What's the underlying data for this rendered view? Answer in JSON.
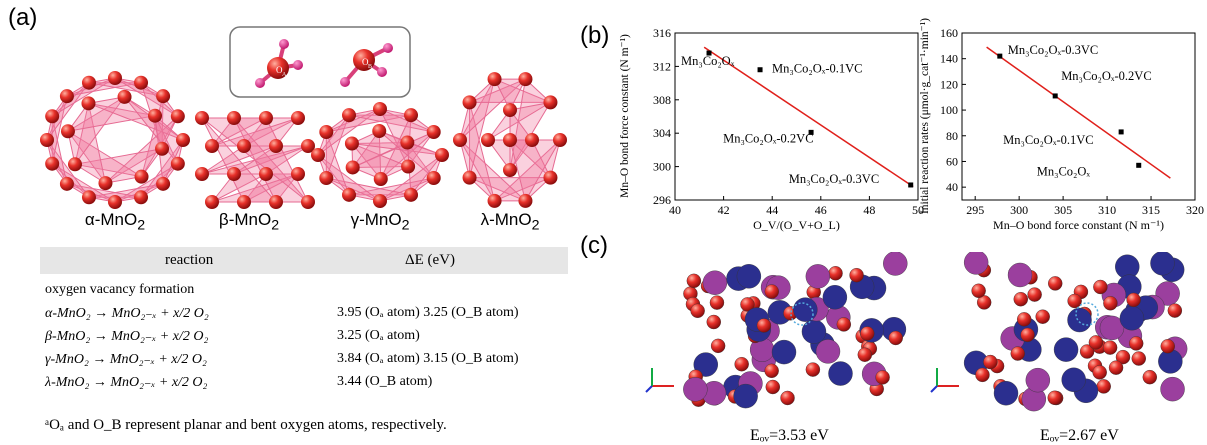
{
  "panel_a": {
    "label": "(a)",
    "structures": [
      {
        "name": "α-MnO",
        "sub": "2"
      },
      {
        "name": "β-MnO",
        "sub": "2"
      },
      {
        "name": "γ-MnO",
        "sub": "2"
      },
      {
        "name": "λ-MnO",
        "sub": "2"
      }
    ],
    "inset": {
      "atom_a": "A",
      "atom_b": "B"
    },
    "table": {
      "col_reaction": "reaction",
      "col_energy": "ΔE (eV)",
      "section": "oxygen vacancy formation",
      "rows": [
        {
          "reaction": "α-MnO₂ → MnO₂₋ₓ + x/2 O₂",
          "energy": "3.95 (Oₐ atom) 3.25 (O_B atom)"
        },
        {
          "reaction": "β-MnO₂ → MnO₂₋ₓ + x/2 O₂",
          "energy": "3.25 (Oₐ atom)"
        },
        {
          "reaction": "γ-MnO₂ → MnO₂₋ₓ + x/2 O₂",
          "energy": "3.84 (Oₐ atom) 3.15 (O_B atom)"
        },
        {
          "reaction": "λ-MnO₂ → MnO₂₋ₓ + x/2 O₂",
          "energy": "3.44 (O_B atom)"
        }
      ],
      "footnote": "ᵃOₐ and O_B represent planar and bent oxygen atoms, respectively."
    }
  },
  "panel_b": {
    "label": "(b)"
  },
  "panel_c": {
    "label": "(c)",
    "energies": [
      "Eₒᵥ=3.53 eV",
      "Eₒᵥ=2.67 eV"
    ]
  },
  "colors": {
    "fit_line": "#e0201b",
    "oxygen": "#e8312a",
    "oxygen_dark": "#9c0f0f",
    "mn_purple": "#9b3f9e",
    "co_blue": "#2b2f8f",
    "polyhedron": "#f27aa0"
  },
  "chart_data": [
    {
      "type": "scatter",
      "xlabel": "O_V/(O_V+O_L)",
      "ylabel": "Mn–O bond force constant (N m⁻¹)",
      "xlim": [
        40,
        50
      ],
      "ylim": [
        296,
        316
      ],
      "xticks": [
        "40",
        "42",
        "44",
        "46",
        "48",
        "50"
      ],
      "yticks": [
        "296",
        "300",
        "304",
        "308",
        "312",
        "316"
      ],
      "points": [
        {
          "label": "Mn₃Co₂Oₓ",
          "x": 41.4,
          "y": 313.6
        },
        {
          "label": "Mn₃Co₂Oₓ-0.1VC",
          "x": 43.5,
          "y": 311.6
        },
        {
          "label": "Mn₃Co₂Oₓ-0.2VC",
          "x": 45.6,
          "y": 304.1
        },
        {
          "label": "Mn₃Co₂Oₓ-0.3VC",
          "x": 49.7,
          "y": 297.8
        }
      ],
      "fit": {
        "x": [
          41.2,
          49.8
        ],
        "y": [
          314.3,
          297.6
        ]
      },
      "grid": false
    },
    {
      "type": "scatter",
      "xlabel": "Mn–O bond force constant (N m⁻¹)",
      "ylabel": "Initial reaction rates (μmol·g_cat⁻¹·min⁻¹)",
      "xlim": [
        293.5,
        320
      ],
      "ylim": [
        30,
        160
      ],
      "xticks": [
        "295",
        "300",
        "305",
        "310",
        "315",
        "320"
      ],
      "yticks": [
        "40",
        "60",
        "80",
        "100",
        "120",
        "140",
        "160"
      ],
      "points": [
        {
          "label": "Mn₃Co₂Oₓ-0.3VC",
          "x": 297.8,
          "y": 142
        },
        {
          "label": "Mn₃Co₂Oₓ-0.2VC",
          "x": 304.1,
          "y": 111
        },
        {
          "label": "Mn₃Co₂Oₓ-0.1VC",
          "x": 311.6,
          "y": 83
        },
        {
          "label": "Mn₃Co₂Oₓ",
          "x": 313.6,
          "y": 57
        }
      ],
      "fit": {
        "x": [
          296.3,
          317.2
        ],
        "y": [
          149,
          47
        ]
      },
      "grid": false
    }
  ]
}
